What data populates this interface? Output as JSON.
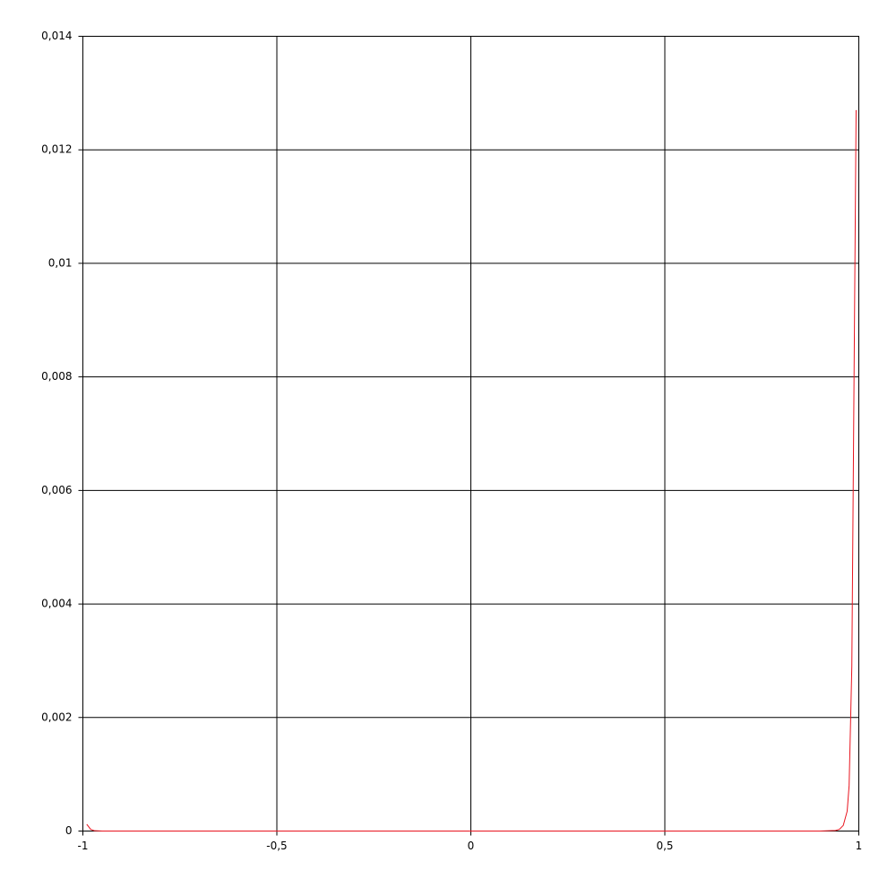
{
  "chart_data": {
    "type": "line",
    "x": [
      -0.99,
      -0.98,
      -0.97,
      -0.95,
      -0.9,
      0.9,
      0.94,
      0.95,
      0.96,
      0.97,
      0.975,
      0.982,
      0.993
    ],
    "series": [
      {
        "color": "#e8141e",
        "values": [
          0.00012,
          3e-05,
          5e-06,
          0,
          0,
          0,
          1e-05,
          3e-05,
          0.0001,
          0.00035,
          0.0008,
          0.0029,
          0.0127
        ]
      }
    ],
    "xlim": [
      -1,
      1
    ],
    "xticks": [
      -1,
      {
        "value": -0.5,
        "label": "-0,5"
      },
      0,
      {
        "value": 0.5,
        "label": "0,5"
      },
      1
    ],
    "ylim": [
      0,
      0.014
    ],
    "yticks": [
      0,
      {
        "value": 0.002,
        "label": "0,002"
      },
      {
        "value": 0.004,
        "label": "0,004"
      },
      {
        "value": 0.006,
        "label": "0,006"
      },
      {
        "value": 0.008,
        "label": "0,008"
      },
      {
        "value": 0.01,
        "label": "0,01"
      },
      {
        "value": 0.012,
        "label": "0,012"
      },
      {
        "value": 0.014,
        "label": "0,014"
      }
    ],
    "grid": true
  }
}
